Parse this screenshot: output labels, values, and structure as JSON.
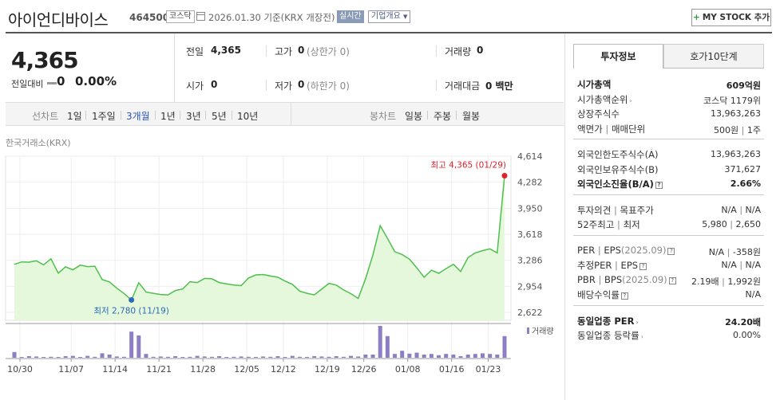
{
  "header": {
    "stock_name": "아이언디바이스",
    "stock_code": "464500",
    "market": "코스닥",
    "date": "2026.01.30 기준(KRX 개장전)",
    "realtime": "실시간",
    "company_info": "기업개요",
    "mystock_label": "MY STOCK 추가"
  },
  "price": {
    "current": "4,365",
    "change_label": "전일대비",
    "change": "0",
    "change_rate": "0.00%"
  },
  "summary": {
    "prev_close_label": "전일",
    "prev_close": "4,365",
    "high_label": "고가",
    "high": "0",
    "upper_limit": "(상한가 0)",
    "volume_label": "거래량",
    "volume": "0",
    "open_label": "시가",
    "open": "0",
    "low_label": "저가",
    "low": "0",
    "lower_limit": "(하한가 0)",
    "amount_label": "거래대금",
    "amount": "0 백만"
  },
  "periods": {
    "line_label": "선차트",
    "line_options": [
      "1일",
      "1주일",
      "3개월",
      "1년",
      "3년",
      "5년",
      "10년"
    ],
    "active": "3개월",
    "candle_label": "봉차트",
    "candle_options": [
      "일봉",
      "주봉",
      "월봉"
    ]
  },
  "chart_data": {
    "type": "line",
    "source": "한국거래소(KRX)",
    "yticks": [
      "4,614",
      "4,282",
      "3,950",
      "3,618",
      "3,286",
      "2,954",
      "2,622"
    ],
    "ylim": [
      2622,
      4614
    ],
    "xticks": [
      "10/30",
      "11/07",
      "11/14",
      "11/21",
      "11/28",
      "12/05",
      "12/12",
      "12/19",
      "12/26",
      "01/08",
      "01/16",
      "01/23"
    ],
    "high_label": "최고 4,365 (01/29)",
    "low_label": "최저 2,780 (11/19)",
    "volume_legend": "거래량",
    "price": [
      3235,
      3265,
      3262,
      3280,
      3228,
      3305,
      3122,
      3202,
      3165,
      3225,
      3205,
      3210,
      3040,
      3010,
      2930,
      2862,
      2780,
      3000,
      2880,
      2865,
      2850,
      2845,
      2900,
      2920,
      3012,
      3002,
      3055,
      3050,
      3002,
      2985,
      2970,
      2962,
      3060,
      3100,
      3105,
      3085,
      3070,
      3020,
      2980,
      2892,
      2865,
      2845,
      2918,
      2992,
      2970,
      2908,
      2860,
      2800,
      3052,
      3350,
      3728,
      3565,
      3395,
      3360,
      3300,
      3190,
      3070,
      3160,
      3120,
      3180,
      3235,
      3142,
      3320,
      3380,
      3410,
      3432,
      3380,
      4365
    ],
    "volume": [
      0.18,
      0.02,
      0.05,
      0.04,
      0.02,
      0.03,
      0.02,
      0.05,
      0.06,
      0.02,
      0.06,
      0.03,
      0.14,
      0.1,
      0.04,
      0.03,
      0.82,
      0.7,
      0.12,
      0.03,
      0.04,
      0.03,
      0.05,
      0.02,
      0.03,
      0.06,
      0.04,
      0.03,
      0.05,
      0.02,
      0.03,
      0.04,
      0.03,
      0.02,
      0.04,
      0.03,
      0.05,
      0.02,
      0.06,
      0.03,
      0.02,
      0.05,
      0.04,
      0.03,
      0.05,
      0.03,
      0.06,
      0.04,
      0.1,
      0.1,
      1.0,
      0.68,
      0.12,
      0.22,
      0.13,
      0.16,
      0.1,
      0.12,
      0.08,
      0.12,
      0.1,
      0.05,
      0.1,
      0.12,
      0.14,
      0.12,
      0.1,
      0.68
    ]
  },
  "panel": {
    "tab_invest": "투자정보",
    "tab_quote": "호가10단계",
    "rows1": [
      {
        "label": "시가총액",
        "value": "609억원",
        "bold": true
      },
      {
        "label": "시가총액순위",
        "value": "코스닥 1179위",
        "arrow": true
      },
      {
        "label": "상장주식수",
        "value": "13,963,263"
      },
      {
        "label": "액면가",
        "label2": "매매단위",
        "value": "500원",
        "value2": "1주"
      }
    ],
    "rows2": [
      {
        "label": "외국인한도주식수(A)",
        "value": "13,963,263"
      },
      {
        "label": "외국인보유주식수(B)",
        "value": "371,627"
      },
      {
        "label": "외국인소진율(B/A)",
        "value": "2.66%",
        "bold": true,
        "help": true
      }
    ],
    "rows3": [
      {
        "label": "투자의견",
        "label2": "목표주가",
        "value": "N/A",
        "value2": "N/A"
      },
      {
        "label": "52주최고",
        "label2": "최저",
        "value": "5,980",
        "value2": "2,650"
      }
    ],
    "rows4": [
      {
        "label": "PER",
        "label2": "EPS",
        "sub": "(2025.09)",
        "value": "N/A",
        "value2": "-358원"
      },
      {
        "label": "추정PER",
        "label2": "EPS",
        "value": "N/A",
        "value2": "N/A"
      },
      {
        "label": "PBR",
        "label2": "BPS",
        "sub": "(2025.09)",
        "value": "2.19배",
        "value2": "1,992원"
      },
      {
        "label": "배당수익률",
        "value": "N/A"
      }
    ],
    "rows5": [
      {
        "label": "동일업종 PER",
        "value": "24.20배",
        "bold": true,
        "arrow": true
      },
      {
        "label": "동일업종 등락률",
        "value": "0.00%",
        "arrow": true
      }
    ],
    "colors": {
      "line": "#4cc04c",
      "fill": "#e6f8dc",
      "volume": "#8e7fc4",
      "high": "#e0202a",
      "low": "#2a6ab8"
    }
  }
}
